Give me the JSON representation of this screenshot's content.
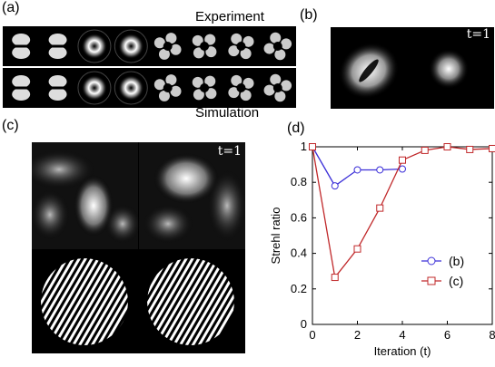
{
  "panel_a": {
    "label": "(a)",
    "experiment_label": "Experiment",
    "simulation_label": "Simulation",
    "frame_count": 8
  },
  "panel_b": {
    "label": "(b)",
    "time_label": "t=1"
  },
  "panel_c": {
    "label": "(c)",
    "time_label": "t=1"
  },
  "panel_d": {
    "label": "(d)"
  },
  "colors": {
    "series_b": "#3b2fd8",
    "series_c": "#c0282a",
    "background": "#000000"
  },
  "chart_data": {
    "type": "line",
    "xlabel": "Iteration (t)",
    "ylabel": "Strehl ratio",
    "xlim": [
      0,
      8
    ],
    "ylim": [
      0,
      1
    ],
    "xticks": [
      0,
      2,
      4,
      6,
      8
    ],
    "yticks": [
      0,
      0.2,
      0.4,
      0.6,
      0.8,
      1
    ],
    "ytick_labels": [
      "0",
      "0.2",
      "0.4",
      "0.6",
      "0.8",
      "1"
    ],
    "legend_position": "right",
    "series": [
      {
        "name": "(b)",
        "marker": "circle",
        "color": "#3b2fd8",
        "x": [
          0,
          1,
          2,
          3,
          4
        ],
        "y": [
          1.0,
          0.78,
          0.87,
          0.87,
          0.875
        ]
      },
      {
        "name": "(c)",
        "marker": "square",
        "color": "#c0282a",
        "x": [
          0,
          1,
          2,
          3,
          4,
          5,
          6,
          7,
          8
        ],
        "y": [
          1.0,
          0.265,
          0.425,
          0.655,
          0.925,
          0.98,
          1.0,
          0.985,
          0.99
        ]
      }
    ]
  }
}
